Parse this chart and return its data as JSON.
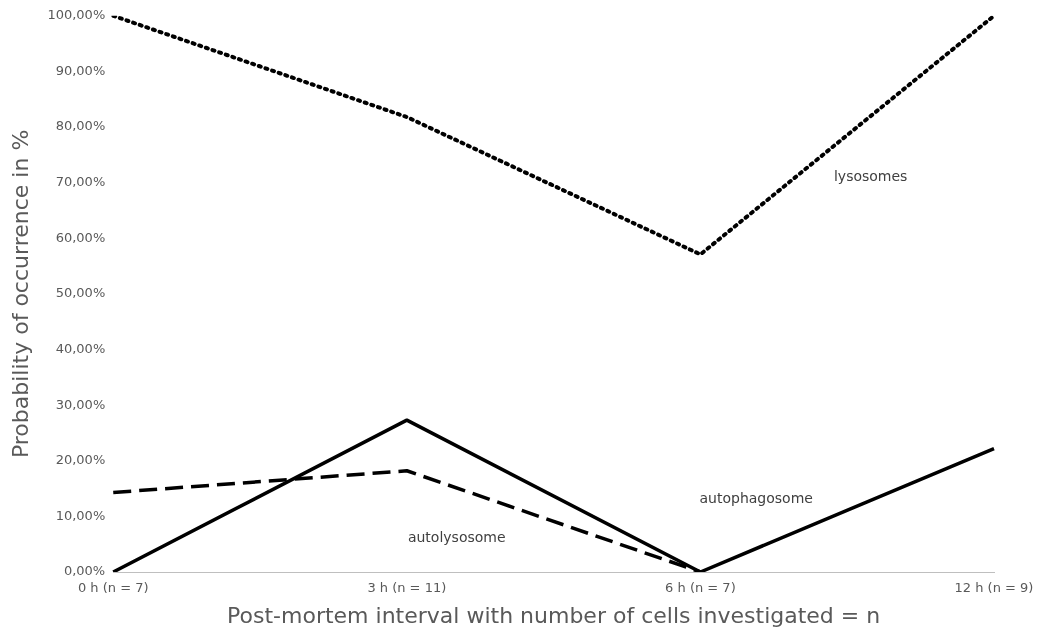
{
  "chart_data": {
    "type": "line",
    "xlabel": "Post-mortem interval with number of cells investigated = n",
    "ylabel": "Probability of occurrence in %",
    "categories": [
      "0 h (n = 7)",
      "3 h (n = 11)",
      "6 h (n = 7)",
      "12 h (n = 9)"
    ],
    "series": [
      {
        "name": "lysosomes",
        "color": "#000000",
        "line_style": "dotted",
        "values": [
          100,
          81.8,
          57.1,
          100
        ]
      },
      {
        "name": "autophagosome",
        "color": "#000000",
        "line_style": "solid",
        "values": [
          0,
          27.3,
          0,
          22.2
        ]
      },
      {
        "name": "autolysosome",
        "color": "#000000",
        "line_style": "dashed",
        "values": [
          14.3,
          18.2,
          0,
          null
        ]
      }
    ],
    "ylim": [
      0,
      100
    ],
    "yticks": [
      {
        "value": 0,
        "label": "0,00%"
      },
      {
        "value": 10,
        "label": "10,00%"
      },
      {
        "value": 20,
        "label": "20,00%"
      },
      {
        "value": 30,
        "label": "30,00%"
      },
      {
        "value": 40,
        "label": "40,00%"
      },
      {
        "value": 50,
        "label": "50,00%"
      },
      {
        "value": 60,
        "label": "60,00%"
      },
      {
        "value": 70,
        "label": "70,00%"
      },
      {
        "value": 80,
        "label": "80,00%"
      },
      {
        "value": 90,
        "label": "90,00%"
      },
      {
        "value": 100,
        "label": "100,00%"
      }
    ],
    "grid": false,
    "legend": false,
    "marker": "none"
  }
}
